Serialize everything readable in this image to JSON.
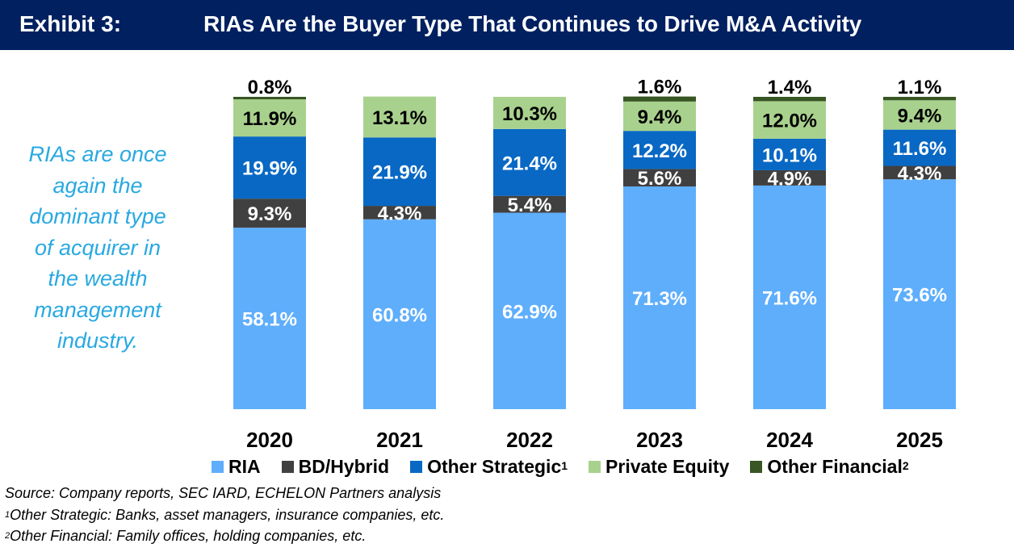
{
  "header": {
    "exhibit": "Exhibit 3:",
    "title": "RIAs Are the Buyer Type That Continues to Drive M&A Activity"
  },
  "callout": [
    "RIAs are once",
    "again the",
    "dominant type",
    "of acquirer in",
    "the wealth",
    "management",
    "industry."
  ],
  "colors": {
    "header": "#002060",
    "callout": "#29a9e1"
  },
  "chart_data": {
    "type": "bar",
    "stacked": true,
    "title": "RIAs Are the Buyer Type That Continues to Drive M&A Activity",
    "categories": [
      "2020",
      "2021",
      "2022",
      "2023",
      "2024",
      "2025"
    ],
    "ylim": [
      0,
      100
    ],
    "unit": "%",
    "series": [
      {
        "name": "RIA",
        "sup": "",
        "color": "#5eaefc",
        "label_color": "#ffffff",
        "values": [
          58.1,
          60.8,
          62.9,
          71.3,
          71.6,
          73.6
        ]
      },
      {
        "name": "BD/Hybrid",
        "sup": "",
        "color": "#404040",
        "label_color": "#ffffff",
        "values": [
          9.3,
          4.3,
          5.4,
          5.6,
          4.9,
          4.3
        ]
      },
      {
        "name": "Other Strategic",
        "sup": "1",
        "color": "#0868c4",
        "label_color": "#ffffff",
        "values": [
          19.9,
          21.9,
          21.4,
          12.2,
          10.1,
          11.6
        ]
      },
      {
        "name": "Private Equity",
        "sup": "",
        "color": "#a9d18e",
        "label_color": "#000000",
        "values": [
          11.9,
          13.1,
          10.3,
          9.4,
          12.0,
          9.4
        ]
      },
      {
        "name": "Other Financial",
        "sup": "2",
        "color": "#375623",
        "label_color": "#000000",
        "values": [
          0.8,
          0,
          0,
          1.6,
          1.4,
          1.1
        ]
      }
    ],
    "legend": "bottom"
  },
  "notes": {
    "source": "Source: Company reports, SEC IARD, ECHELON Partners analysis",
    "n1_mark": "1",
    "n1": "Other Strategic: Banks, asset managers, insurance companies, etc.",
    "n2_mark": "2",
    "n2": "Other Financial: Family offices, holding companies, etc."
  }
}
